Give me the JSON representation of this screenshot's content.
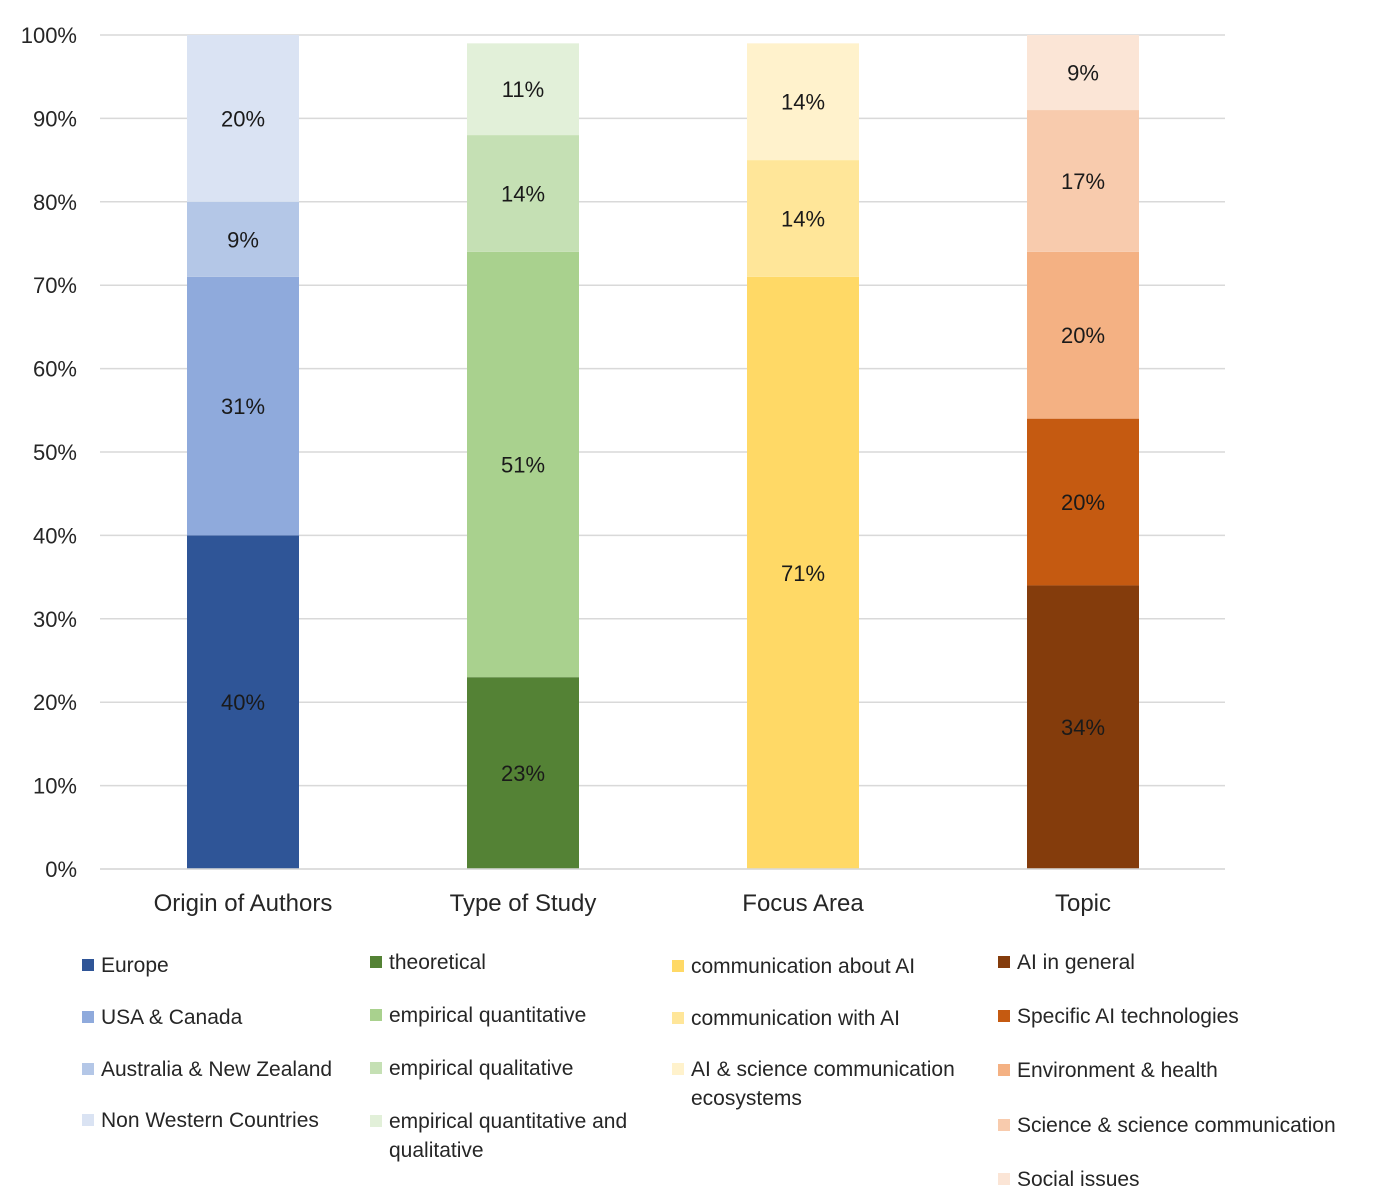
{
  "chart_data": {
    "type": "bar",
    "stacked": true,
    "categories": [
      "Origin of Authors",
      "Type of Study",
      "Focus Area",
      "Topic"
    ],
    "ylim": [
      0,
      100
    ],
    "yticks": [
      "0%",
      "10%",
      "20%",
      "30%",
      "40%",
      "50%",
      "60%",
      "70%",
      "80%",
      "90%",
      "100%"
    ],
    "grid": true,
    "legend_position": "bottom",
    "groups": [
      {
        "category": "Origin of Authors",
        "segments": [
          {
            "name": "Europe",
            "value": 40,
            "label": "40%",
            "color": "#2F5597"
          },
          {
            "name": "USA & Canada",
            "value": 31,
            "label": "31%",
            "color": "#8FAADC"
          },
          {
            "name": "Australia & New Zealand",
            "value": 9,
            "label": "9%",
            "color": "#B4C7E7"
          },
          {
            "name": "Non Western Countries",
            "value": 20,
            "label": "20%",
            "color": "#DAE3F3"
          }
        ]
      },
      {
        "category": "Type of Study",
        "segments": [
          {
            "name": "theoretical",
            "value": 23,
            "label": "23%",
            "color": "#548235"
          },
          {
            "name": "empirical quantitative",
            "value": 51,
            "label": "51%",
            "color": "#A9D18E"
          },
          {
            "name": "empirical qualitative",
            "value": 14,
            "label": "14%",
            "color": "#C5E0B4"
          },
          {
            "name": "empirical quantitative and qualitative",
            "value": 11,
            "label": "11%",
            "color": "#E2F0D9"
          }
        ]
      },
      {
        "category": "Focus Area",
        "segments": [
          {
            "name": "communication about AI",
            "value": 71,
            "label": "71%",
            "color": "#FFD966"
          },
          {
            "name": "communication with AI",
            "value": 14,
            "label": "14%",
            "color": "#FFE699"
          },
          {
            "name": "AI & science communication ecosystems",
            "value": 14,
            "label": "14%",
            "color": "#FFF2CC"
          }
        ]
      },
      {
        "category": "Topic",
        "segments": [
          {
            "name": "AI in general",
            "value": 34,
            "label": "34%",
            "color": "#843C0C"
          },
          {
            "name": "Specific AI technologies",
            "value": 20,
            "label": "20%",
            "color": "#C55A11"
          },
          {
            "name": "Environment & health",
            "value": 20,
            "label": "20%",
            "color": "#F4B183"
          },
          {
            "name": "Science & science communication",
            "value": 17,
            "label": "17%",
            "color": "#F8CBAD"
          },
          {
            "name": "Social issues",
            "value": 9,
            "label": "9%",
            "color": "#FBE5D6"
          }
        ]
      }
    ]
  }
}
